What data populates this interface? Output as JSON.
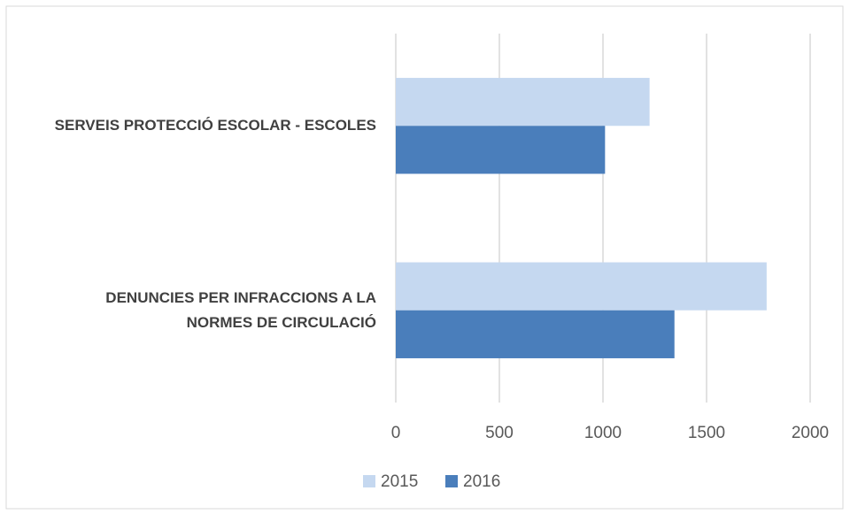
{
  "chart_data": {
    "type": "bar",
    "orientation": "horizontal",
    "categories": [
      "SERVEIS PROTECCIÓ ESCOLAR - ESCOLES",
      "DENUNCIES PER INFRACCIONS A LA NORMES DE CIRCULACIÓ"
    ],
    "series": [
      {
        "name": "2015",
        "color": "#c5d8f0",
        "values": [
          1225,
          1790
        ]
      },
      {
        "name": "2016",
        "color": "#4a7ebb",
        "values": [
          1010,
          1345
        ]
      }
    ],
    "xlim": [
      0,
      2000
    ],
    "xticks": [
      0,
      500,
      1000,
      1500,
      2000
    ],
    "grid": true,
    "legend": "bottom"
  }
}
